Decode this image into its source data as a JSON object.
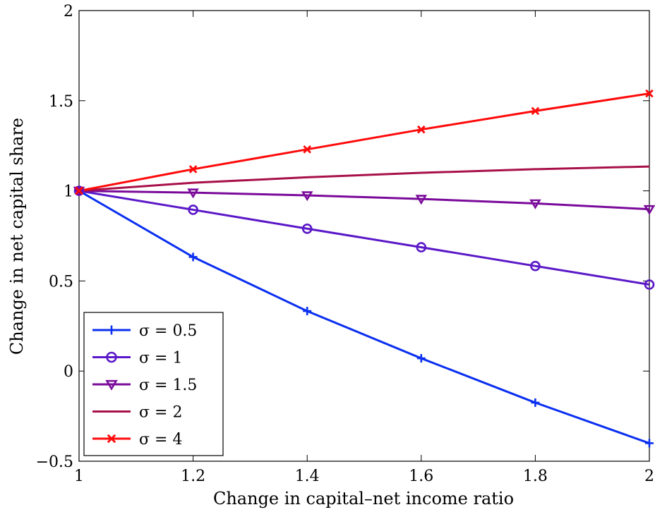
{
  "chart_data": {
    "type": "line",
    "title": "",
    "xlabel": "Change in capital–net income ratio",
    "ylabel": "Change in net capital share",
    "xlim": [
      1,
      2
    ],
    "ylim": [
      -0.5,
      2
    ],
    "xticks": [
      1,
      1.2,
      1.4,
      1.6,
      1.8,
      2
    ],
    "xtick_labels": [
      "1",
      "1.2",
      "1.4",
      "1.6",
      "1.8",
      "2"
    ],
    "yticks": [
      -0.5,
      0,
      0.5,
      1,
      1.5,
      2
    ],
    "ytick_labels": [
      "−0.5",
      "0",
      "0.5",
      "1",
      "1.5",
      "2"
    ],
    "grid": false,
    "legend_position": "bottom-left",
    "x": [
      1,
      1.2,
      1.4,
      1.6,
      1.8,
      2
    ],
    "series": [
      {
        "name": "σ = 0.5",
        "color": "#0a2ff0",
        "marker": "plus",
        "values": [
          1,
          0.633,
          0.333,
          0.071,
          -0.175,
          -0.4
        ]
      },
      {
        "name": "σ = 1",
        "color": "#5a18c8",
        "marker": "circle",
        "values": [
          1,
          0.895,
          0.79,
          0.687,
          0.583,
          0.48
        ]
      },
      {
        "name": "σ = 1.5",
        "color": "#7a0a9a",
        "marker": "triangle-down",
        "values": [
          1,
          0.99,
          0.975,
          0.955,
          0.93,
          0.898
        ]
      },
      {
        "name": "σ = 2",
        "color": "#a8104a",
        "marker": "none",
        "values": [
          1,
          1.045,
          1.075,
          1.1,
          1.12,
          1.135
        ]
      },
      {
        "name": "σ = 4",
        "color": "#ff0a0a",
        "marker": "x",
        "values": [
          1,
          1.12,
          1.23,
          1.34,
          1.443,
          1.54
        ]
      }
    ]
  }
}
